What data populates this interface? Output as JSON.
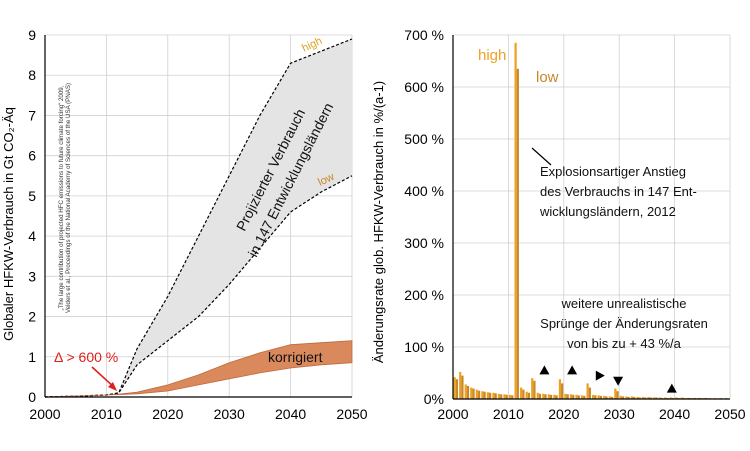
{
  "colors": {
    "high": "#f0a020",
    "low": "#c8882a",
    "corrected_fill": "#d9895c",
    "corrected_stroke": "#c06a3a",
    "projection_fill": "#e4e4e4",
    "annotation_red": "#e0201c",
    "axis": "#000000",
    "grid": "#d0d0d0"
  },
  "chart_data": [
    {
      "type": "area",
      "ylabel": "Globaler HFKW-Verbrauch in Gt CO₂-Äq",
      "xlim": [
        2000,
        2050
      ],
      "ylim": [
        0,
        9
      ],
      "x_ticks": [
        "2000",
        "2010",
        "2020",
        "2030",
        "2040",
        "2050"
      ],
      "y_ticks": [
        "0",
        "1",
        "2",
        "3",
        "4",
        "5",
        "6",
        "7",
        "8",
        "9"
      ],
      "grid": true,
      "source_note_line1": "„The large contribution of projected HFC emissions to future climate forcing“ 2009,",
      "source_note_line2": "Velders et al., Proceedings of the National Academy of Sciences of the USA (PNAS)",
      "series": [
        {
          "name": "high",
          "x": [
            2000,
            2005,
            2010,
            2012,
            2015,
            2020,
            2025,
            2030,
            2035,
            2040,
            2045,
            2050
          ],
          "y": [
            0.0,
            0.02,
            0.05,
            0.1,
            1.2,
            2.5,
            4.0,
            5.5,
            7.0,
            8.3,
            8.6,
            8.9
          ]
        },
        {
          "name": "low",
          "x": [
            2000,
            2005,
            2010,
            2012,
            2015,
            2020,
            2025,
            2030,
            2035,
            2040,
            2045,
            2050
          ],
          "y": [
            0.0,
            0.02,
            0.05,
            0.1,
            0.8,
            1.4,
            2.0,
            2.8,
            3.7,
            4.6,
            5.1,
            5.5
          ]
        },
        {
          "name": "korrigiert",
          "x": [
            2000,
            2010,
            2012,
            2015,
            2020,
            2025,
            2030,
            2035,
            2040,
            2045,
            2050
          ],
          "upper": [
            0.0,
            0.05,
            0.07,
            0.12,
            0.3,
            0.55,
            0.85,
            1.1,
            1.3,
            1.35,
            1.4
          ],
          "lower": [
            0.0,
            0.05,
            0.06,
            0.08,
            0.15,
            0.3,
            0.45,
            0.6,
            0.72,
            0.8,
            0.85
          ]
        }
      ],
      "labels": {
        "high": "high",
        "low": "low",
        "projection_line1": "Projizierter Verbrauch",
        "projection_line2": "in 147 Entwicklungsländern",
        "corrected": "korrigiert",
        "jump": "Δ > 600 %"
      }
    },
    {
      "type": "bar",
      "ylabel": "Änderungsrate glob. HFKW-Verbrauch in %/(a-1)",
      "xlim": [
        2000,
        2050
      ],
      "ylim": [
        0,
        700
      ],
      "x_ticks": [
        "2000",
        "2010",
        "2020",
        "2030",
        "2040",
        "2050"
      ],
      "y_ticks": [
        "0%",
        "100 %",
        "200 %",
        "300 %",
        "400 %",
        "500 %",
        "600 %",
        "700 %"
      ],
      "grid": true,
      "years": [
        2001,
        2002,
        2003,
        2004,
        2005,
        2006,
        2007,
        2008,
        2009,
        2010,
        2011,
        2012,
        2013,
        2014,
        2015,
        2016,
        2017,
        2018,
        2019,
        2020,
        2021,
        2022,
        2023,
        2024,
        2025,
        2026,
        2027,
        2028,
        2029,
        2030,
        2031,
        2032,
        2033,
        2034,
        2035,
        2036,
        2037,
        2038,
        2039,
        2040,
        2041,
        2042,
        2043,
        2044,
        2045,
        2046,
        2047,
        2048,
        2049,
        2050
      ],
      "series": [
        {
          "name": "high",
          "values": [
            42,
            52,
            28,
            22,
            18,
            15,
            13,
            12,
            10,
            9,
            8,
            685,
            22,
            14,
            40,
            12,
            10,
            9,
            8,
            38,
            10,
            9,
            8,
            7,
            30,
            8,
            7,
            6,
            5,
            20,
            6,
            5,
            5,
            4,
            4,
            4,
            3,
            3,
            3,
            3,
            3,
            3,
            2,
            2,
            2,
            2,
            2,
            2,
            2,
            2
          ]
        },
        {
          "name": "low",
          "values": [
            38,
            45,
            25,
            20,
            16,
            14,
            12,
            11,
            9,
            8,
            7,
            635,
            18,
            12,
            35,
            10,
            9,
            8,
            7,
            30,
            9,
            8,
            7,
            6,
            22,
            7,
            6,
            5,
            4,
            15,
            5,
            4,
            4,
            3,
            3,
            3,
            3,
            2,
            2,
            2,
            2,
            2,
            2,
            2,
            2,
            2,
            1,
            1,
            1,
            1
          ]
        }
      ],
      "labels": {
        "high": "high",
        "low": "low",
        "annotation1_line1": "Explosionsartiger Anstieg",
        "annotation1_line2": "des Verbrauchs in 147 Ent-",
        "annotation1_line3": "wicklungsländern, 2012",
        "annotation2_line1": "weitere unrealistische",
        "annotation2_line2": "Sprünge der Änderungsraten",
        "annotation2_line3": "von bis zu + 43 %/a"
      },
      "markers": [
        {
          "year": 2016.5,
          "value": 55,
          "direction": "up"
        },
        {
          "year": 2021.5,
          "value": 55,
          "direction": "up"
        },
        {
          "year": 2026.5,
          "value": 45,
          "direction": "right"
        },
        {
          "year": 2029.8,
          "value": 35,
          "direction": "down"
        },
        {
          "year": 2039.5,
          "value": 20,
          "direction": "up"
        }
      ]
    }
  ]
}
